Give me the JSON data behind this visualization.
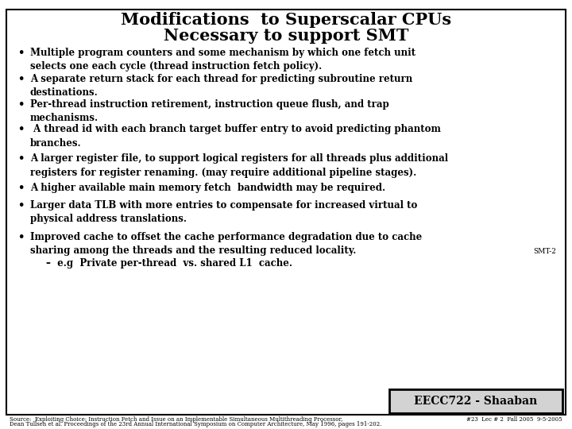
{
  "title_line1": "Modifications  to Superscalar CPUs",
  "title_line2": "Necessary to support SMT",
  "bullets": [
    "Multiple program counters and some mechanism by which one fetch unit\nselects one each cycle (thread instruction fetch policy).",
    "A separate return stack for each thread for predicting subroutine return\ndestinations.",
    "Per-thread instruction retirement, instruction queue flush, and trap\nmechanisms.",
    " A thread id with each branch target buffer entry to avoid predicting phantom\nbranches.",
    "A larger register file, to support logical registers for all threads plus additional\nregisters for register renaming. (may require additional pipeline stages).",
    "A higher available main memory fetch  bandwidth may be required.",
    "Larger data TLB with more entries to compensate for increased virtual to\nphysical address translations.",
    "Improved cache to offset the cache performance degradation due to cache\nsharing among the threads and the resulting reduced locality."
  ],
  "sub_bullet": "–  e.g  Private per-thread  vs. shared L1  cache.",
  "smt_label": "SMT-2",
  "badge_text": "EECC722 - Shaaban",
  "source_line1": "Source:  Exploiting Choice: Instruction Fetch and Issue on an Implementable Simultaneous Multithreading Processor,",
  "source_line2": "Dean Tullsen et al. Proceedings of the 23rd Annual International Symposium on Computer Architecture, May 1996, pages 191-202.",
  "footer_right": "#23  Lec # 2  Fall 2005  9-5-2005",
  "bg_color": "#ffffff",
  "border_color": "#000000",
  "title_color": "#000000",
  "text_color": "#000000",
  "badge_bg": "#d3d3d3",
  "badge_border": "#000000",
  "title_fontsize": 15,
  "bullet_fontsize": 8.5,
  "sub_bullet_fontsize": 8.5,
  "footer_fontsize": 5.0,
  "smt_fontsize": 6.5,
  "badge_fontsize": 10
}
